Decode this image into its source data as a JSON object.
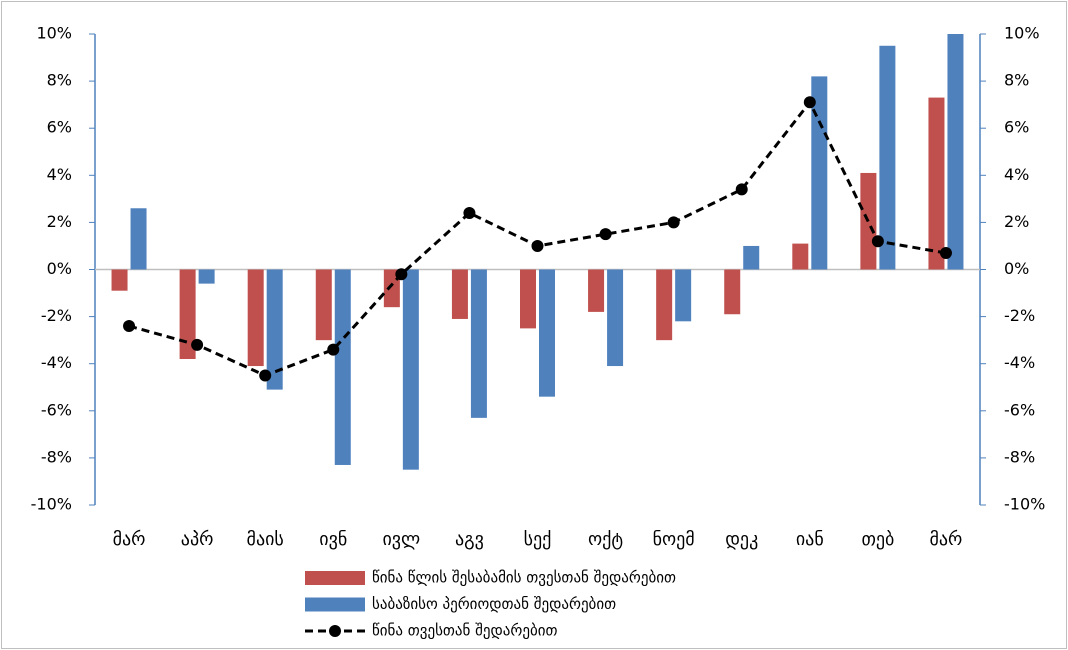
{
  "chart_data": {
    "type": "bar_line",
    "categories": [
      "მარ",
      "აპრ",
      "მაის",
      "ივნ",
      "ივლ",
      "აგვ",
      "სექ",
      "ოქტ",
      "ნოემ",
      "დეკ",
      "იან",
      "თებ",
      "მარ"
    ],
    "series": [
      {
        "name": "წინა წლის შესაბამის თვესთან შედარებით",
        "type": "bar",
        "color": "#c0504d",
        "values": [
          -0.9,
          -3.8,
          -4.1,
          -3.0,
          -1.6,
          -2.1,
          -2.5,
          -1.8,
          -3.0,
          -1.9,
          1.1,
          4.1,
          7.3
        ]
      },
      {
        "name": "საბაზისო პერიოდთან შედარებით",
        "type": "bar",
        "color": "#4f81bd",
        "values": [
          2.6,
          -0.6,
          -5.1,
          -8.3,
          -8.5,
          -6.3,
          -5.4,
          -4.1,
          -2.2,
          1.0,
          8.2,
          9.5,
          10.0
        ]
      },
      {
        "name": "წინა თვესთან შედარებით",
        "type": "line",
        "color": "#000000",
        "axis": "y2",
        "values": [
          -2.4,
          -3.2,
          -4.5,
          -3.4,
          -0.2,
          2.4,
          1.0,
          1.5,
          2.0,
          3.4,
          7.1,
          1.2,
          0.7
        ]
      }
    ],
    "ylim": [
      -10,
      10
    ],
    "yticks": [
      {
        "value": -10,
        "label": "-10%"
      },
      {
        "value": -8,
        "label": "-8%"
      },
      {
        "value": -6,
        "label": "-6%"
      },
      {
        "value": -4,
        "label": "-4%"
      },
      {
        "value": -2,
        "label": "-2%"
      },
      {
        "value": 0,
        "label": "0%"
      },
      {
        "value": 2,
        "label": "2%"
      },
      {
        "value": 4,
        "label": "4%"
      },
      {
        "value": 6,
        "label": "6%"
      },
      {
        "value": 8,
        "label": "8%"
      },
      {
        "value": 10,
        "label": "10%"
      }
    ],
    "y2lim": [
      -10,
      10
    ],
    "y2ticks": [
      {
        "value": -10,
        "label": "-10%"
      },
      {
        "value": -8,
        "label": "-8%"
      },
      {
        "value": -6,
        "label": "-6%"
      },
      {
        "value": -4,
        "label": "-4%"
      },
      {
        "value": -2,
        "label": "-2%"
      },
      {
        "value": 0,
        "label": "0%"
      },
      {
        "value": 2,
        "label": "2%"
      },
      {
        "value": 4,
        "label": "4%"
      },
      {
        "value": 6,
        "label": "6%"
      },
      {
        "value": 8,
        "label": "8%"
      },
      {
        "value": 10,
        "label": "10%"
      }
    ],
    "grid": false,
    "legend": "bottom"
  }
}
